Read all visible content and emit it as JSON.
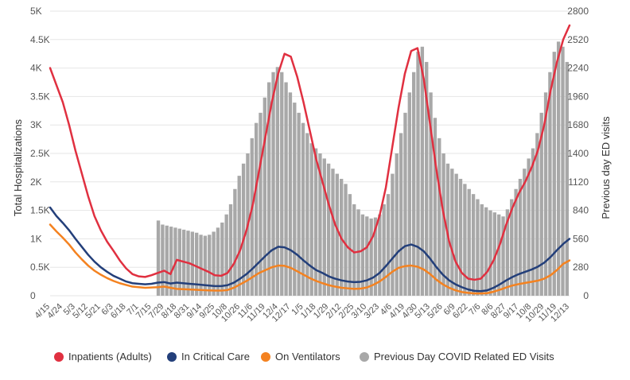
{
  "chart_data": {
    "type": "line",
    "title": "",
    "ylabel": "Total Hospitalizations",
    "y2label": "Previous day ED visits",
    "ylim": [
      0,
      5000
    ],
    "y2lim": [
      0,
      2800
    ],
    "yticks": [
      {
        "value": 0,
        "label": "0"
      },
      {
        "value": 500,
        "label": "0.5K"
      },
      {
        "value": 1000,
        "label": "1K"
      },
      {
        "value": 1500,
        "label": "1.5K"
      },
      {
        "value": 2000,
        "label": "2K"
      },
      {
        "value": 2500,
        "label": "2.5K"
      },
      {
        "value": 3000,
        "label": "3K"
      },
      {
        "value": 3500,
        "label": "3.5K"
      },
      {
        "value": 4000,
        "label": "4K"
      },
      {
        "value": 4500,
        "label": "4.5K"
      },
      {
        "value": 5000,
        "label": "5K"
      }
    ],
    "y2ticks": [
      {
        "value": 0,
        "label": "0"
      },
      {
        "value": 280,
        "label": "280"
      },
      {
        "value": 560,
        "label": "560"
      },
      {
        "value": 840,
        "label": "840"
      },
      {
        "value": 1120,
        "label": "1120"
      },
      {
        "value": 1400,
        "label": "1400"
      },
      {
        "value": 1680,
        "label": "1680"
      },
      {
        "value": 1960,
        "label": "1960"
      },
      {
        "value": 2240,
        "label": "2240"
      },
      {
        "value": 2520,
        "label": "2520"
      },
      {
        "value": 2800,
        "label": "2800"
      }
    ],
    "xlabels": [
      "4/15",
      "4/24",
      "5/3",
      "5/12",
      "5/21",
      "6/3",
      "6/18",
      "7/1",
      "7/15",
      "7/29",
      "8/18",
      "8/31",
      "9/14",
      "9/25",
      "10/8",
      "10/26",
      "11/6",
      "11/19",
      "12/4",
      "12/17",
      "1/5",
      "1/18",
      "1/29",
      "2/12",
      "2/25",
      "3/10",
      "3/23",
      "4/6",
      "4/19",
      "4/30",
      "5/13",
      "5/26",
      "6/9",
      "6/22",
      "7/6",
      "8/6",
      "8/27",
      "9/17",
      "10/8",
      "10/29",
      "11/19",
      "12/13"
    ],
    "legend_position": "bottom",
    "legend": [
      {
        "name": "Inpatients (Adults)",
        "color": "#e03040"
      },
      {
        "name": "In Critical Care",
        "color": "#233f7a"
      },
      {
        "name": "On Ventilators",
        "color": "#f48220"
      },
      {
        "name": "Previous Day COVID Related ED Visits",
        "color": "#a8a8a8"
      }
    ],
    "series": [
      {
        "name": "Inpatients (Adults)",
        "axis": "left",
        "color": "#e03040",
        "values": [
          4000,
          3700,
          3400,
          3000,
          2550,
          2150,
          1750,
          1400,
          1150,
          950,
          790,
          620,
          480,
          380,
          340,
          330,
          360,
          400,
          440,
          380,
          630,
          600,
          570,
          520,
          470,
          420,
          360,
          350,
          400,
          560,
          800,
          1150,
          1600,
          2200,
          2800,
          3400,
          3900,
          4250,
          4200,
          3850,
          3400,
          2900,
          2400,
          2000,
          1600,
          1250,
          1000,
          850,
          760,
          780,
          850,
          1050,
          1400,
          1900,
          2600,
          3300,
          3900,
          4300,
          4350,
          3800,
          3000,
          2200,
          1500,
          950,
          600,
          400,
          300,
          280,
          300,
          420,
          620,
          900,
          1250,
          1550,
          1800,
          2000,
          2250,
          2550,
          3000,
          3600,
          4100,
          4500,
          4750
        ]
      },
      {
        "name": "In Critical Care",
        "axis": "left",
        "color": "#233f7a",
        "values": [
          1550,
          1400,
          1280,
          1150,
          1000,
          860,
          720,
          600,
          500,
          420,
          350,
          300,
          250,
          220,
          210,
          200,
          210,
          230,
          240,
          215,
          230,
          220,
          210,
          200,
          190,
          180,
          170,
          170,
          185,
          230,
          300,
          380,
          480,
          590,
          700,
          800,
          860,
          850,
          800,
          720,
          620,
          530,
          450,
          400,
          340,
          300,
          270,
          250,
          240,
          245,
          270,
          320,
          400,
          520,
          650,
          780,
          870,
          900,
          860,
          780,
          650,
          500,
          370,
          270,
          200,
          150,
          110,
          85,
          80,
          95,
          140,
          200,
          270,
          330,
          380,
          420,
          460,
          510,
          580,
          680,
          800,
          910,
          1000
        ]
      },
      {
        "name": "On Ventilators",
        "axis": "left",
        "color": "#f48220",
        "values": [
          1250,
          1130,
          1020,
          900,
          760,
          640,
          530,
          440,
          370,
          310,
          260,
          220,
          190,
          160,
          150,
          140,
          145,
          150,
          160,
          140,
          120,
          115,
          110,
          105,
          100,
          95,
          90,
          90,
          100,
          140,
          200,
          260,
          330,
          400,
          450,
          500,
          530,
          525,
          490,
          430,
          370,
          310,
          260,
          220,
          185,
          160,
          140,
          130,
          120,
          125,
          145,
          190,
          250,
          330,
          420,
          490,
          520,
          530,
          510,
          460,
          380,
          280,
          200,
          140,
          95,
          65,
          50,
          40,
          40,
          45,
          70,
          105,
          145,
          180,
          205,
          225,
          245,
          265,
          300,
          360,
          450,
          560,
          620
        ]
      }
    ],
    "bars": {
      "name": "Previous Day COVID Related ED Visits",
      "axis": "right",
      "color": "#a8a8a8",
      "start_fraction": 0.205,
      "values": [
        740,
        700,
        690,
        680,
        670,
        660,
        650,
        640,
        630,
        620,
        600,
        590,
        600,
        630,
        670,
        720,
        800,
        900,
        1050,
        1180,
        1300,
        1400,
        1550,
        1700,
        1800,
        1950,
        2100,
        2200,
        2250,
        2200,
        2100,
        2000,
        1900,
        1800,
        1700,
        1600,
        1500,
        1450,
        1400,
        1350,
        1300,
        1250,
        1200,
        1150,
        1100,
        1000,
        900,
        850,
        800,
        780,
        760,
        770,
        800,
        900,
        1000,
        1200,
        1400,
        1600,
        1800,
        2000,
        2200,
        2400,
        2450,
        2300,
        2000,
        1750,
        1550,
        1400,
        1300,
        1250,
        1200,
        1150,
        1100,
        1050,
        1000,
        950,
        900,
        870,
        840,
        820,
        800,
        780,
        850,
        950,
        1050,
        1150,
        1250,
        1350,
        1450,
        1600,
        1800,
        2000,
        2200,
        2400,
        2500,
        2450,
        2300
      ]
    }
  }
}
